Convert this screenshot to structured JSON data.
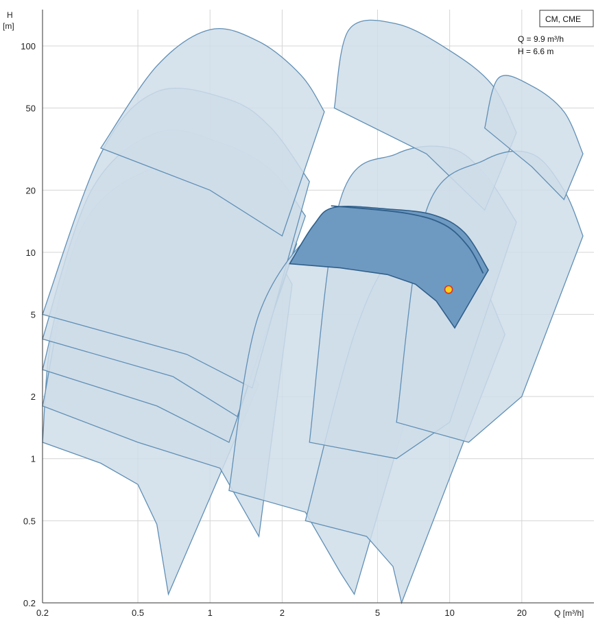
{
  "chart_data": {
    "type": "area",
    "title": "",
    "series_label": "CM, CME",
    "x_axis": {
      "title": "Q [m³/h]",
      "scale": "log",
      "range": [
        0.2,
        40
      ],
      "ticks": [
        0.2,
        0.5,
        1,
        2,
        5,
        10,
        20
      ],
      "tick_labels": [
        "0.2",
        "0.5",
        "1",
        "2",
        "5",
        "10",
        "20"
      ]
    },
    "y_axis": {
      "title_line1": "H",
      "title_line2": "[m]",
      "scale": "log",
      "range": [
        0.2,
        150
      ],
      "ticks": [
        0.2,
        0.5,
        1,
        2,
        5,
        10,
        20,
        50,
        100
      ],
      "tick_labels": [
        "0.2",
        "0.5",
        "1",
        "2",
        "5",
        "10",
        "20",
        "50",
        "100"
      ]
    },
    "grid": true,
    "legend_position": "top-right",
    "duty_point": {
      "Q": 9.9,
      "H": 6.6,
      "q_text": "Q = 9.9 m³/h",
      "h_text": "H = 6.6 m"
    },
    "highlighted_range": {
      "upper_curve": [
        [
          2.15,
          8.8
        ],
        [
          2.7,
          13.5
        ],
        [
          3.3,
          16.5
        ],
        [
          5.5,
          16.2
        ],
        [
          8.5,
          15.2
        ],
        [
          11.5,
          12.5
        ],
        [
          14.5,
          8.2
        ]
      ],
      "lower_curve": [
        [
          2.15,
          8.8
        ],
        [
          3.5,
          8.4
        ],
        [
          5.5,
          7.8
        ],
        [
          7.2,
          7.0
        ],
        [
          8.8,
          5.8
        ],
        [
          10.5,
          4.3
        ],
        [
          14.5,
          8.2
        ]
      ],
      "mid_curve": [
        [
          3.2,
          16.8
        ],
        [
          6.5,
          15.5
        ],
        [
          9.5,
          13.6
        ],
        [
          12.0,
          10.6
        ],
        [
          13.8,
          7.9
        ]
      ]
    },
    "ranges": [
      {
        "name": "",
        "upper_curve": [
          [
            0.2,
            1.2
          ],
          [
            0.22,
            4.0
          ],
          [
            0.3,
            6.5
          ],
          [
            0.5,
            6.2
          ],
          [
            1.0,
            4.2
          ],
          [
            1.6,
            2.3
          ]
        ],
        "lower_curve": [
          [
            0.2,
            1.2
          ],
          [
            0.35,
            0.95
          ],
          [
            0.5,
            0.75
          ],
          [
            0.6,
            0.48
          ],
          [
            0.67,
            0.22
          ],
          [
            1.6,
            2.3
          ]
        ]
      },
      {
        "name": "",
        "upper_curve": [
          [
            0.2,
            1.8
          ],
          [
            0.28,
            9.0
          ],
          [
            0.6,
            17.0
          ],
          [
            1.0,
            16.0
          ],
          [
            1.6,
            12.5
          ],
          [
            2.2,
            7.0
          ]
        ],
        "lower_curve": [
          [
            0.2,
            1.8
          ],
          [
            0.5,
            1.2
          ],
          [
            1.1,
            0.9
          ],
          [
            1.6,
            0.42
          ],
          [
            2.2,
            7.0
          ]
        ]
      },
      {
        "name": "",
        "upper_curve": [
          [
            0.2,
            2.7
          ],
          [
            0.3,
            14.0
          ],
          [
            0.6,
            26.0
          ],
          [
            1.0,
            24.0
          ],
          [
            1.6,
            18.0
          ],
          [
            2.3,
            11.0
          ]
        ],
        "lower_curve": [
          [
            0.2,
            2.7
          ],
          [
            0.6,
            1.8
          ],
          [
            1.2,
            1.2
          ],
          [
            2.3,
            11.0
          ]
        ]
      },
      {
        "name": "",
        "upper_curve": [
          [
            0.2,
            3.8
          ],
          [
            0.32,
            20.0
          ],
          [
            0.6,
            38.0
          ],
          [
            1.1,
            34.0
          ],
          [
            1.8,
            25.0
          ],
          [
            2.5,
            15.0
          ]
        ],
        "lower_curve": [
          [
            0.2,
            3.8
          ],
          [
            0.7,
            2.5
          ],
          [
            1.3,
            1.6
          ],
          [
            2.5,
            15.0
          ]
        ]
      },
      {
        "name": "",
        "upper_curve": [
          [
            0.2,
            5.0
          ],
          [
            0.35,
            30.0
          ],
          [
            0.6,
            60.0
          ],
          [
            1.2,
            55.0
          ],
          [
            1.8,
            40.0
          ],
          [
            2.6,
            22.0
          ]
        ],
        "lower_curve": [
          [
            0.2,
            5.0
          ],
          [
            0.8,
            3.2
          ],
          [
            1.5,
            2.2
          ],
          [
            2.6,
            22.0
          ]
        ]
      },
      {
        "name": "",
        "upper_curve": [
          [
            0.35,
            32.0
          ],
          [
            0.6,
            80.0
          ],
          [
            1.0,
            120.0
          ],
          [
            1.6,
            105.0
          ],
          [
            2.4,
            72.0
          ],
          [
            3.0,
            48.0
          ]
        ],
        "lower_curve": [
          [
            0.35,
            32.0
          ],
          [
            1.0,
            20.0
          ],
          [
            2.0,
            12.0
          ],
          [
            3.0,
            48.0
          ]
        ]
      },
      {
        "name": "",
        "upper_curve": [
          [
            1.2,
            0.7
          ],
          [
            1.6,
            5.0
          ],
          [
            3.0,
            14.0
          ],
          [
            5.0,
            14.5
          ],
          [
            7.0,
            11.0
          ],
          [
            9.0,
            5.5
          ]
        ],
        "lower_curve": [
          [
            1.2,
            0.7
          ],
          [
            2.5,
            0.55
          ],
          [
            3.5,
            0.28
          ],
          [
            4.0,
            0.22
          ],
          [
            9.0,
            5.5
          ]
        ]
      },
      {
        "name": "",
        "upper_curve": [
          [
            2.5,
            0.5
          ],
          [
            4.0,
            4.0
          ],
          [
            6.0,
            10.0
          ],
          [
            9.5,
            11.0
          ],
          [
            13.0,
            8.0
          ],
          [
            17.0,
            4.0
          ]
        ],
        "lower_curve": [
          [
            2.5,
            0.5
          ],
          [
            4.5,
            0.42
          ],
          [
            5.8,
            0.3
          ],
          [
            6.3,
            0.2
          ],
          [
            17.0,
            4.0
          ]
        ]
      },
      {
        "name": "",
        "upper_curve": [
          [
            2.6,
            1.2
          ],
          [
            3.5,
            18.0
          ],
          [
            6.0,
            30.0
          ],
          [
            10.0,
            32.0
          ],
          [
            14.0,
            24.0
          ],
          [
            19.0,
            14.0
          ]
        ],
        "lower_curve": [
          [
            2.6,
            1.2
          ],
          [
            6.0,
            1.0
          ],
          [
            10.0,
            1.5
          ],
          [
            19.0,
            14.0
          ]
        ]
      },
      {
        "name": "",
        "upper_curve": [
          [
            3.3,
            50.0
          ],
          [
            3.8,
            120.0
          ],
          [
            6.0,
            128.0
          ],
          [
            10.0,
            95.0
          ],
          [
            15.0,
            65.0
          ],
          [
            19.0,
            38.0
          ]
        ],
        "lower_curve": [
          [
            3.3,
            50.0
          ],
          [
            8.0,
            30.0
          ],
          [
            14.0,
            16.0
          ],
          [
            19.0,
            38.0
          ]
        ]
      },
      {
        "name": "",
        "upper_curve": [
          [
            6.0,
            1.5
          ],
          [
            8.0,
            16.0
          ],
          [
            14.0,
            28.0
          ],
          [
            22.0,
            30.0
          ],
          [
            30.0,
            20.0
          ],
          [
            36.0,
            12.0
          ]
        ],
        "lower_curve": [
          [
            6.0,
            1.5
          ],
          [
            12.0,
            1.2
          ],
          [
            20.0,
            2.0
          ],
          [
            36.0,
            12.0
          ]
        ]
      },
      {
        "name": "",
        "upper_curve": [
          [
            14.0,
            40.0
          ],
          [
            16.0,
            70.0
          ],
          [
            22.0,
            64.0
          ],
          [
            30.0,
            48.0
          ],
          [
            36.0,
            30.0
          ]
        ],
        "lower_curve": [
          [
            14.0,
            40.0
          ],
          [
            22.0,
            26.0
          ],
          [
            30.0,
            18.0
          ],
          [
            36.0,
            30.0
          ]
        ]
      }
    ],
    "colors": {
      "range_fill": "#cfdde9",
      "range_stroke": "#5f8fb5",
      "highlight_fill": "#6e9ac2",
      "highlight_stroke": "#2f5f8a",
      "grid": "#d4d4d4",
      "point_fill": "#ffd21a",
      "point_stroke": "#e0301e"
    }
  }
}
